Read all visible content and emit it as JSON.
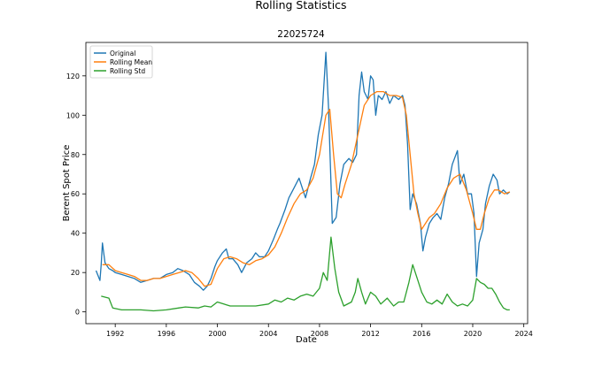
{
  "figure_title": "Rolling Statistics",
  "chart_data": {
    "type": "line",
    "title": "22025724",
    "xlabel": "Date",
    "ylabel": "Berent Spot Price",
    "xlim": [
      1989.7,
      2024.3
    ],
    "ylim": [
      -6,
      137
    ],
    "xticks": [
      1992,
      1996,
      2000,
      2004,
      2008,
      2012,
      2016,
      2020,
      2024
    ],
    "yticks": [
      0,
      20,
      40,
      60,
      80,
      100,
      120
    ],
    "grid": false,
    "legend_position": "top-left",
    "series": [
      {
        "name": "Original",
        "color": "#1f77b4",
        "x": [
          1990.5,
          1990.8,
          1990.9,
          1991.0,
          1991.2,
          1991.5,
          1991.8,
          1992.0,
          1992.5,
          1993.0,
          1993.5,
          1994.0,
          1994.5,
          1995.0,
          1995.5,
          1996.0,
          1996.5,
          1996.9,
          1997.3,
          1997.8,
          1998.2,
          1998.6,
          1998.9,
          1999.2,
          1999.5,
          1999.8,
          2000.0,
          2000.4,
          2000.7,
          2000.9,
          2001.2,
          2001.6,
          2001.9,
          2002.3,
          2002.7,
          2003.0,
          2003.3,
          2003.7,
          2004.0,
          2004.4,
          2004.7,
          2004.9,
          2005.3,
          2005.6,
          2006.0,
          2006.4,
          2006.7,
          2006.9,
          2007.3,
          2007.6,
          2007.9,
          2008.2,
          2008.5,
          2008.7,
          2008.9,
          2009.0,
          2009.3,
          2009.6,
          2009.9,
          2010.3,
          2010.6,
          2010.9,
          2011.1,
          2011.3,
          2011.5,
          2011.8,
          2012.0,
          2012.2,
          2012.4,
          2012.6,
          2012.9,
          2013.2,
          2013.5,
          2013.8,
          2014.2,
          2014.5,
          2014.7,
          2014.9,
          2015.1,
          2015.3,
          2015.6,
          2015.9,
          2016.1,
          2016.3,
          2016.6,
          2016.9,
          2017.2,
          2017.5,
          2017.8,
          2018.1,
          2018.4,
          2018.8,
          2019.0,
          2019.3,
          2019.6,
          2019.9,
          2020.1,
          2020.3,
          2020.5,
          2020.8,
          2021.0,
          2021.3,
          2021.6,
          2021.9,
          2022.1,
          2022.4,
          2022.7,
          2022.9
        ],
        "y": [
          21,
          16,
          24,
          35,
          25,
          22,
          21,
          20,
          19,
          18,
          17,
          15,
          16,
          17,
          17,
          19,
          20,
          22,
          21,
          19,
          15,
          13,
          11,
          13,
          17,
          23,
          26,
          30,
          32,
          27,
          27,
          24,
          20,
          25,
          27,
          30,
          28,
          28,
          31,
          37,
          42,
          45,
          52,
          58,
          63,
          68,
          62,
          58,
          68,
          75,
          90,
          100,
          132,
          105,
          65,
          45,
          48,
          65,
          75,
          78,
          76,
          80,
          110,
          122,
          112,
          108,
          120,
          118,
          100,
          110,
          108,
          112,
          106,
          110,
          108,
          110,
          105,
          85,
          52,
          60,
          55,
          45,
          31,
          38,
          45,
          48,
          50,
          47,
          58,
          65,
          75,
          82,
          65,
          70,
          60,
          60,
          50,
          18,
          35,
          42,
          55,
          64,
          70,
          67,
          60,
          62,
          60,
          61
        ]
      },
      {
        "name": "Rolling Mean",
        "color": "#ff7f0e",
        "x": [
          1991.0,
          1991.5,
          1992.0,
          1992.5,
          1993.0,
          1993.5,
          1994.0,
          1994.5,
          1995.0,
          1995.5,
          1996.0,
          1996.5,
          1997.0,
          1997.5,
          1998.0,
          1998.5,
          1999.0,
          1999.5,
          2000.0,
          2000.5,
          2001.0,
          2001.5,
          2002.0,
          2002.5,
          2003.0,
          2003.5,
          2004.0,
          2004.5,
          2005.0,
          2005.5,
          2006.0,
          2006.5,
          2007.0,
          2007.5,
          2008.0,
          2008.5,
          2008.8,
          2009.1,
          2009.4,
          2009.7,
          2010.0,
          2010.5,
          2011.0,
          2011.5,
          2012.0,
          2012.5,
          2013.0,
          2013.5,
          2014.0,
          2014.5,
          2014.8,
          2015.1,
          2015.4,
          2015.7,
          2016.0,
          2016.3,
          2016.6,
          2017.0,
          2017.5,
          2018.0,
          2018.5,
          2019.0,
          2019.5,
          2020.0,
          2020.3,
          2020.6,
          2020.9,
          2021.3,
          2021.7,
          2022.0,
          2022.5,
          2022.9
        ],
        "y": [
          24,
          24,
          21,
          20,
          19,
          18,
          16,
          16,
          17,
          17,
          18,
          19,
          20,
          21,
          20,
          17,
          13,
          14,
          22,
          27,
          28,
          27,
          25,
          24,
          26,
          27,
          29,
          33,
          40,
          48,
          55,
          60,
          62,
          68,
          80,
          100,
          103,
          80,
          60,
          58,
          65,
          75,
          90,
          105,
          110,
          112,
          112,
          110,
          110,
          109,
          100,
          80,
          60,
          50,
          42,
          45,
          48,
          50,
          55,
          63,
          68,
          70,
          62,
          50,
          42,
          42,
          50,
          58,
          62,
          62,
          60,
          61
        ]
      },
      {
        "name": "Rolling Std",
        "color": "#2ca02c",
        "x": [
          1990.9,
          1991.5,
          1991.8,
          1992.5,
          1993.0,
          1994.0,
          1995.0,
          1996.0,
          1997.0,
          1997.5,
          1998.5,
          1999.0,
          1999.5,
          2000.0,
          2001.0,
          2002.0,
          2003.0,
          2004.0,
          2004.5,
          2005.0,
          2005.5,
          2006.0,
          2006.5,
          2007.0,
          2007.5,
          2008.0,
          2008.3,
          2008.6,
          2008.9,
          2009.2,
          2009.5,
          2009.9,
          2010.5,
          2010.8,
          2011.0,
          2011.3,
          2011.6,
          2012.0,
          2012.4,
          2012.8,
          2013.3,
          2013.8,
          2014.2,
          2014.6,
          2015.0,
          2015.3,
          2015.7,
          2016.0,
          2016.4,
          2016.8,
          2017.2,
          2017.6,
          2018.0,
          2018.4,
          2018.8,
          2019.2,
          2019.6,
          2020.0,
          2020.3,
          2020.6,
          2020.9,
          2021.2,
          2021.5,
          2021.8,
          2022.1,
          2022.4,
          2022.7,
          2022.9
        ],
        "y": [
          8,
          7,
          2,
          1,
          1,
          1,
          0.5,
          1,
          2,
          2.5,
          2,
          3,
          2.5,
          5,
          3,
          3,
          3,
          4,
          6,
          5,
          7,
          6,
          8,
          9,
          8,
          12,
          20,
          16,
          38,
          22,
          10,
          3,
          5,
          10,
          17,
          10,
          4,
          10,
          8,
          4,
          7,
          3,
          5,
          5,
          15,
          24,
          16,
          10,
          5,
          4,
          6,
          4,
          9,
          5,
          3,
          4,
          3,
          6,
          17,
          15,
          14,
          12,
          12,
          9,
          5,
          2,
          1,
          1
        ]
      }
    ]
  }
}
